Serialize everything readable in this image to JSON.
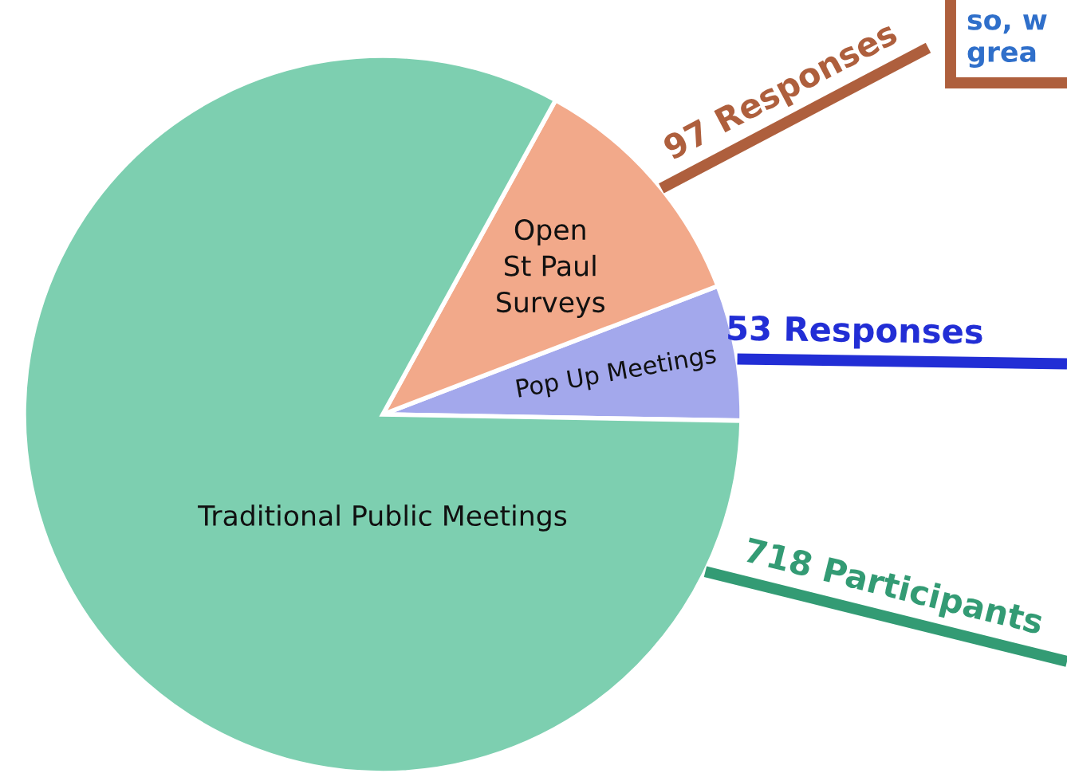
{
  "chart_data": {
    "type": "pie",
    "categories": [
      "Pop Up Meetings",
      "Open\nSt Paul\nSurveys",
      "Traditional Public Meetings"
    ],
    "values": [
      53,
      97,
      718
    ],
    "colors": [
      "#a3a8ec",
      "#f2a98a",
      "#7dcfb0"
    ],
    "value_labels": [
      "53 Responses",
      "97 Responses",
      "718 Participants"
    ],
    "annotations": [
      "so, w\ngrea"
    ]
  }
}
